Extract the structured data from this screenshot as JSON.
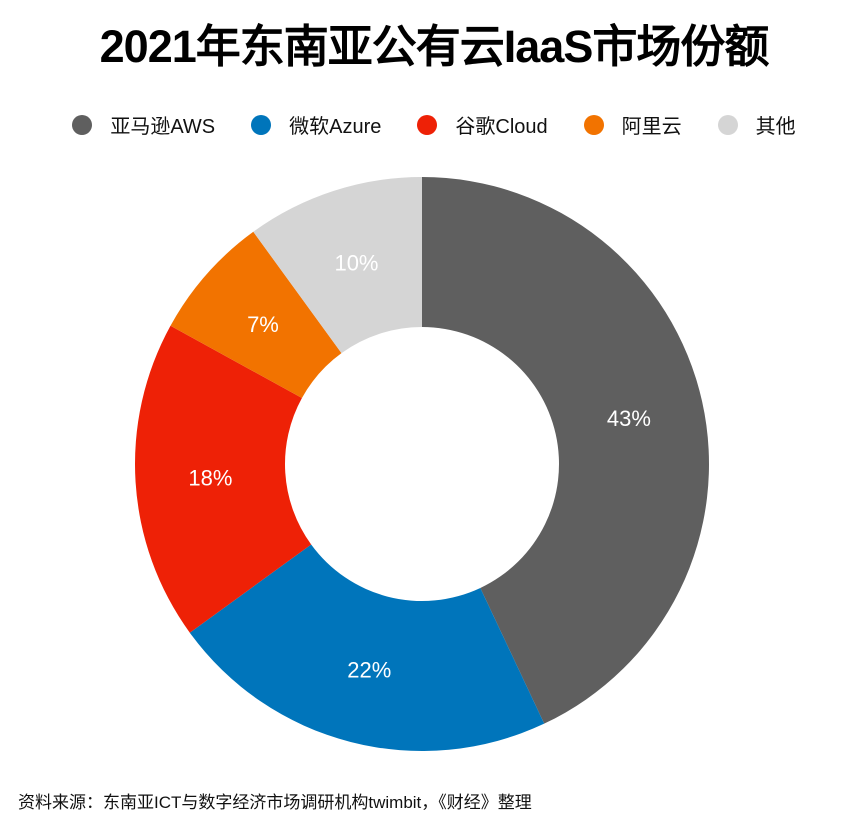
{
  "title": "2021年东南亚公有云IaaS市场份额",
  "legend": [
    {
      "label": "亚马逊AWS",
      "color": "#5f5f5f"
    },
    {
      "label": "微软Azure",
      "color": "#0075bb"
    },
    {
      "label": "谷歌Cloud",
      "color": "#ee2106"
    },
    {
      "label": "阿里云",
      "color": "#f27300"
    },
    {
      "label": "其他",
      "color": "#d5d5d5"
    }
  ],
  "source": "资料来源：东南亚ICT与数字经济市场调研机构twimbit，《财经》整理",
  "chart_data": {
    "type": "pie",
    "subtype": "donut",
    "title": "2021年东南亚公有云IaaS市场份额",
    "categories": [
      "亚马逊AWS",
      "微软Azure",
      "谷歌Cloud",
      "阿里云",
      "其他"
    ],
    "values": [
      43,
      22,
      18,
      7,
      10
    ],
    "unit": "%",
    "data_labels": [
      "43%",
      "22%",
      "18%",
      "7%",
      "10%"
    ],
    "colors": [
      "#5f5f5f",
      "#0075bb",
      "#ee2106",
      "#f27300",
      "#d5d5d5"
    ],
    "legend_position": "top",
    "start_angle": "12 o'clock, clockwise",
    "source": "资料来源：东南亚ICT与数字经济市场调研机构twimbit，《财经》整理"
  }
}
